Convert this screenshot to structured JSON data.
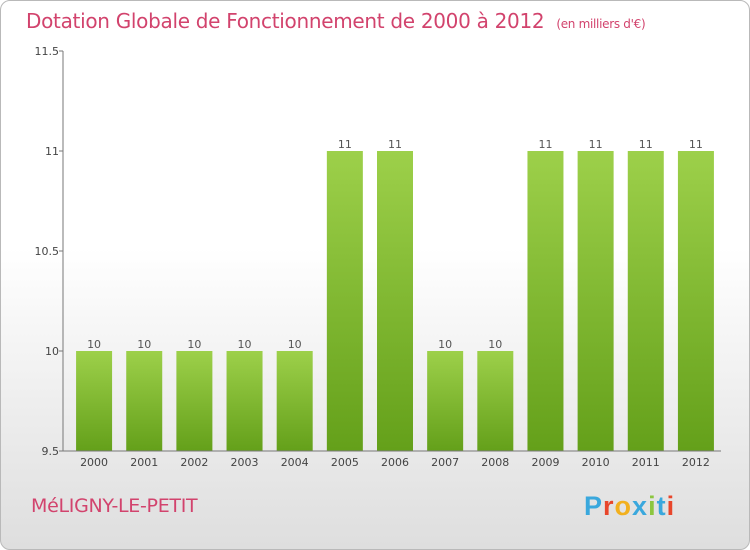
{
  "title": "Dotation Globale de Fonctionnement de 2000 à 2012",
  "subtitle": "(en milliers d'€)",
  "commune": "MéLIGNY-LE-PETIT",
  "logo": {
    "text": "Proxiti",
    "letters": [
      "P",
      "r",
      "o",
      "x",
      "i",
      "t",
      "i"
    ],
    "colors": [
      "#3aa8dd",
      "#e8462b",
      "#f2b01e",
      "#3aa8dd",
      "#8cc63f",
      "#3aa8dd",
      "#e8462b"
    ]
  },
  "colors": {
    "title": "#d2436d",
    "bar_top": "#9dd04a",
    "bar_bottom": "#64a01a"
  },
  "chart_data": {
    "type": "bar",
    "categories": [
      "2000",
      "2001",
      "2002",
      "2003",
      "2004",
      "2005",
      "2006",
      "2007",
      "2008",
      "2009",
      "2010",
      "2011",
      "2012"
    ],
    "values": [
      10,
      10,
      10,
      10,
      10,
      11,
      11,
      10,
      10,
      11,
      11,
      11,
      11
    ],
    "data_labels": [
      "10",
      "10",
      "10",
      "10",
      "10",
      "11",
      "11",
      "10",
      "10",
      "11",
      "11",
      "11",
      "11"
    ],
    "ylim": [
      9.5,
      11.5
    ],
    "yticks": [
      9.5,
      10,
      10.5,
      11,
      11.5
    ],
    "ytick_labels": [
      "9.5",
      "10",
      "10.5",
      "11",
      "11.5"
    ],
    "grid": false
  }
}
